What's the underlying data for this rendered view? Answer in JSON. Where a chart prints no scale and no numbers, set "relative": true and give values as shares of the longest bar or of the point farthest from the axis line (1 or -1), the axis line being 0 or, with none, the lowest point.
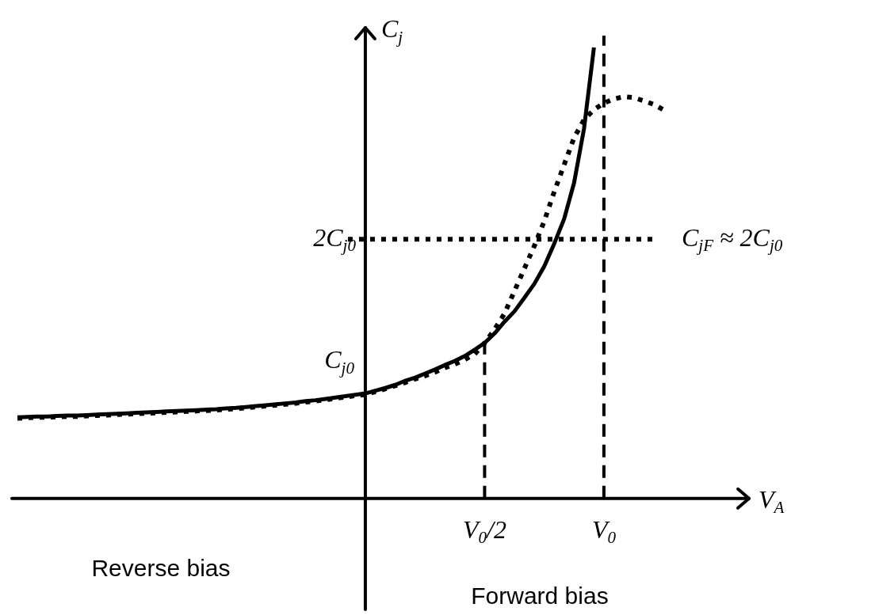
{
  "chart_data": {
    "type": "line",
    "relative": true,
    "xlabel": "V$_{A}$",
    "ylabel": "C$_{j}$",
    "marker": "none",
    "categories": [
      null,
      null,
      null,
      null,
      null,
      null,
      null,
      null,
      null,
      null,
      null,
      null,
      null,
      null,
      null,
      null,
      null,
      null,
      null,
      null,
      null,
      null,
      null,
      null,
      null,
      null,
      null,
      null,
      null,
      null,
      null,
      null,
      null,
      null,
      null,
      null,
      null,
      null,
      null,
      null,
      null,
      null,
      null,
      null,
      null,
      null,
      null,
      "V$_{0}$/2",
      null,
      null,
      null,
      null,
      null,
      null,
      null,
      null,
      null,
      null,
      null,
      "V$_{0}$",
      null,
      null,
      null,
      null,
      null,
      null
    ],
    "series": [
      {
        "color": "#000000",
        "line_style": "solid",
        "values": [
          0.18,
          0.181,
          0.182,
          0.182,
          0.183,
          0.184,
          0.184,
          0.185,
          0.186,
          0.187,
          0.188,
          0.189,
          0.19,
          0.191,
          0.192,
          0.193,
          0.194,
          0.195,
          0.196,
          0.197,
          0.198,
          0.2,
          0.201,
          0.203,
          0.205,
          0.207,
          0.209,
          0.211,
          0.213,
          0.216,
          0.218,
          0.221,
          0.224,
          0.227,
          0.23,
          0.233,
          0.239,
          0.245,
          0.252,
          0.261,
          0.268,
          0.277,
          0.286,
          0.296,
          0.305,
          0.316,
          0.33,
          0.345,
          0.366,
          0.392,
          0.415,
          0.445,
          0.476,
          0.515,
          0.565,
          0.62,
          0.7,
          0.82,
          1,
          null,
          null,
          null,
          null,
          null,
          null,
          null
        ]
      },
      {
        "color": "#000000",
        "line_style": "dotted",
        "values": [
          0.178,
          0.179,
          0.18,
          0.18,
          0.181,
          0.182,
          0.182,
          0.183,
          0.184,
          0.185,
          0.186,
          0.187,
          0.188,
          0.189,
          0.19,
          0.191,
          0.192,
          0.193,
          0.194,
          0.195,
          0.196,
          0.198,
          0.199,
          0.201,
          0.203,
          0.205,
          0.207,
          0.209,
          0.211,
          0.214,
          0.216,
          0.219,
          0.222,
          0.225,
          0.228,
          0.23,
          0.237,
          0.243,
          0.25,
          0.257,
          0.265,
          0.272,
          0.28,
          0.29,
          0.298,
          0.308,
          0.32,
          0.345,
          0.375,
          0.41,
          0.46,
          0.51,
          0.56,
          0.615,
          0.68,
          0.74,
          0.8,
          0.84,
          0.862,
          0.877,
          0.886,
          0.891,
          0.889,
          0.882,
          0.874,
          0.862
        ]
      }
    ],
    "ref_lines": [
      {
        "axis": "y",
        "value": 0.575,
        "label": "2C$_{j0}$",
        "line_style": "dotted"
      },
      {
        "axis": "x",
        "value": "V$_{0}$/2",
        "line_style": "dashed"
      },
      {
        "axis": "x",
        "value": "V$_{0}$",
        "line_style": "dashed"
      }
    ],
    "annotations": [
      {
        "text": "C$_{j0}$",
        "y": 0.233
      },
      "C$_{jF}$ ≈ 2C$_{j0}$",
      "Reverse bias",
      "Forward bias"
    ]
  }
}
